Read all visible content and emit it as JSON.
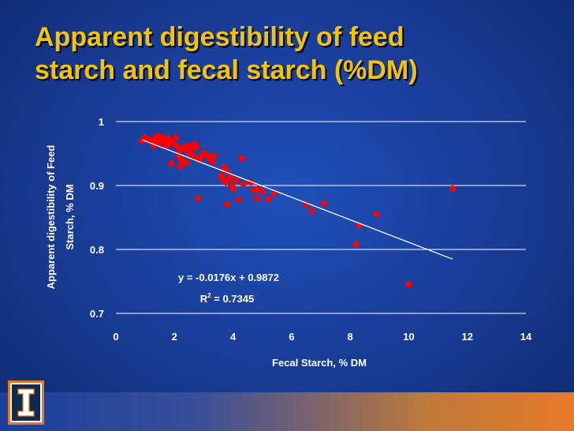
{
  "slide": {
    "title_line1": "Apparent digestibility of feed",
    "title_line2": "starch and fecal starch (%DM)"
  },
  "colors": {
    "title": "#f5c400",
    "marker": "#ff0000",
    "trendline": "#ffffff",
    "axis_text": "#ffffff",
    "logo_border": "#e87722",
    "logo_fill": "#13294b"
  },
  "logo": {
    "icon": "block-i-logo-icon"
  },
  "chart_data": {
    "type": "scatter",
    "xlabel": "Fecal Starch, % DM",
    "ylabel_line1": "Apparent digestibility of Feed",
    "ylabel_line2": "Starch, % DM",
    "xlim": [
      0,
      14
    ],
    "ylim": [
      0.7,
      1.0
    ],
    "xticks": [
      0,
      2,
      4,
      6,
      8,
      10,
      12,
      14
    ],
    "xtick_labels": [
      "0",
      "2",
      "4",
      "6",
      "8",
      "10",
      "12",
      "14"
    ],
    "yticks": [
      0.7,
      0.8,
      0.9,
      1.0
    ],
    "ytick_labels": [
      "0.7",
      "0.8",
      "0.9",
      "1"
    ],
    "grid": "horizontal",
    "marker": "diamond",
    "points": [
      [
        0.9,
        0.97
      ],
      [
        1.0,
        0.975
      ],
      [
        1.1,
        0.972
      ],
      [
        1.2,
        0.97
      ],
      [
        1.3,
        0.962
      ],
      [
        1.35,
        0.975
      ],
      [
        1.4,
        0.968
      ],
      [
        1.45,
        0.978
      ],
      [
        1.5,
        0.965
      ],
      [
        1.55,
        0.972
      ],
      [
        1.6,
        0.975
      ],
      [
        1.7,
        0.968
      ],
      [
        1.75,
        0.962
      ],
      [
        1.8,
        0.974
      ],
      [
        1.85,
        0.97
      ],
      [
        1.9,
        0.935
      ],
      [
        2.0,
        0.965
      ],
      [
        2.05,
        0.975
      ],
      [
        2.1,
        0.96
      ],
      [
        2.15,
        0.945
      ],
      [
        2.2,
        0.955
      ],
      [
        2.2,
        0.93
      ],
      [
        2.25,
        0.94
      ],
      [
        2.3,
        0.96
      ],
      [
        2.35,
        0.958
      ],
      [
        2.4,
        0.935
      ],
      [
        2.45,
        0.962
      ],
      [
        2.5,
        0.95
      ],
      [
        2.55,
        0.955
      ],
      [
        2.6,
        0.962
      ],
      [
        2.65,
        0.945
      ],
      [
        2.7,
        0.965
      ],
      [
        2.75,
        0.96
      ],
      [
        2.8,
        0.88
      ],
      [
        2.85,
        0.94
      ],
      [
        2.9,
        0.945
      ],
      [
        3.0,
        0.95
      ],
      [
        3.1,
        0.948
      ],
      [
        3.2,
        0.942
      ],
      [
        3.3,
        0.937
      ],
      [
        3.35,
        0.946
      ],
      [
        3.6,
        0.915
      ],
      [
        3.65,
        0.91
      ],
      [
        3.7,
        0.928
      ],
      [
        3.75,
        0.905
      ],
      [
        3.8,
        0.922
      ],
      [
        3.8,
        0.87
      ],
      [
        3.9,
        0.912
      ],
      [
        3.95,
        0.9
      ],
      [
        4.0,
        0.895
      ],
      [
        4.1,
        0.908
      ],
      [
        4.2,
        0.878
      ],
      [
        4.3,
        0.942
      ],
      [
        4.35,
        0.902
      ],
      [
        4.6,
        0.905
      ],
      [
        4.7,
        0.893
      ],
      [
        4.8,
        0.88
      ],
      [
        4.85,
        0.895
      ],
      [
        5.0,
        0.89
      ],
      [
        5.2,
        0.878
      ],
      [
        5.4,
        0.888
      ],
      [
        6.5,
        0.87
      ],
      [
        6.7,
        0.86
      ],
      [
        7.1,
        0.872
      ],
      [
        8.2,
        0.808
      ],
      [
        8.3,
        0.838
      ],
      [
        8.9,
        0.855
      ],
      [
        10.0,
        0.745
      ],
      [
        11.5,
        0.895
      ]
    ],
    "trendline": {
      "slope": -0.0176,
      "intercept": 0.9872,
      "x_range": [
        0.9,
        11.5
      ],
      "equation_label": "y = -0.0176x + 0.9872",
      "r2_prefix": "R",
      "r2_sup": "2",
      "r2_value": " = 0.7345"
    }
  }
}
